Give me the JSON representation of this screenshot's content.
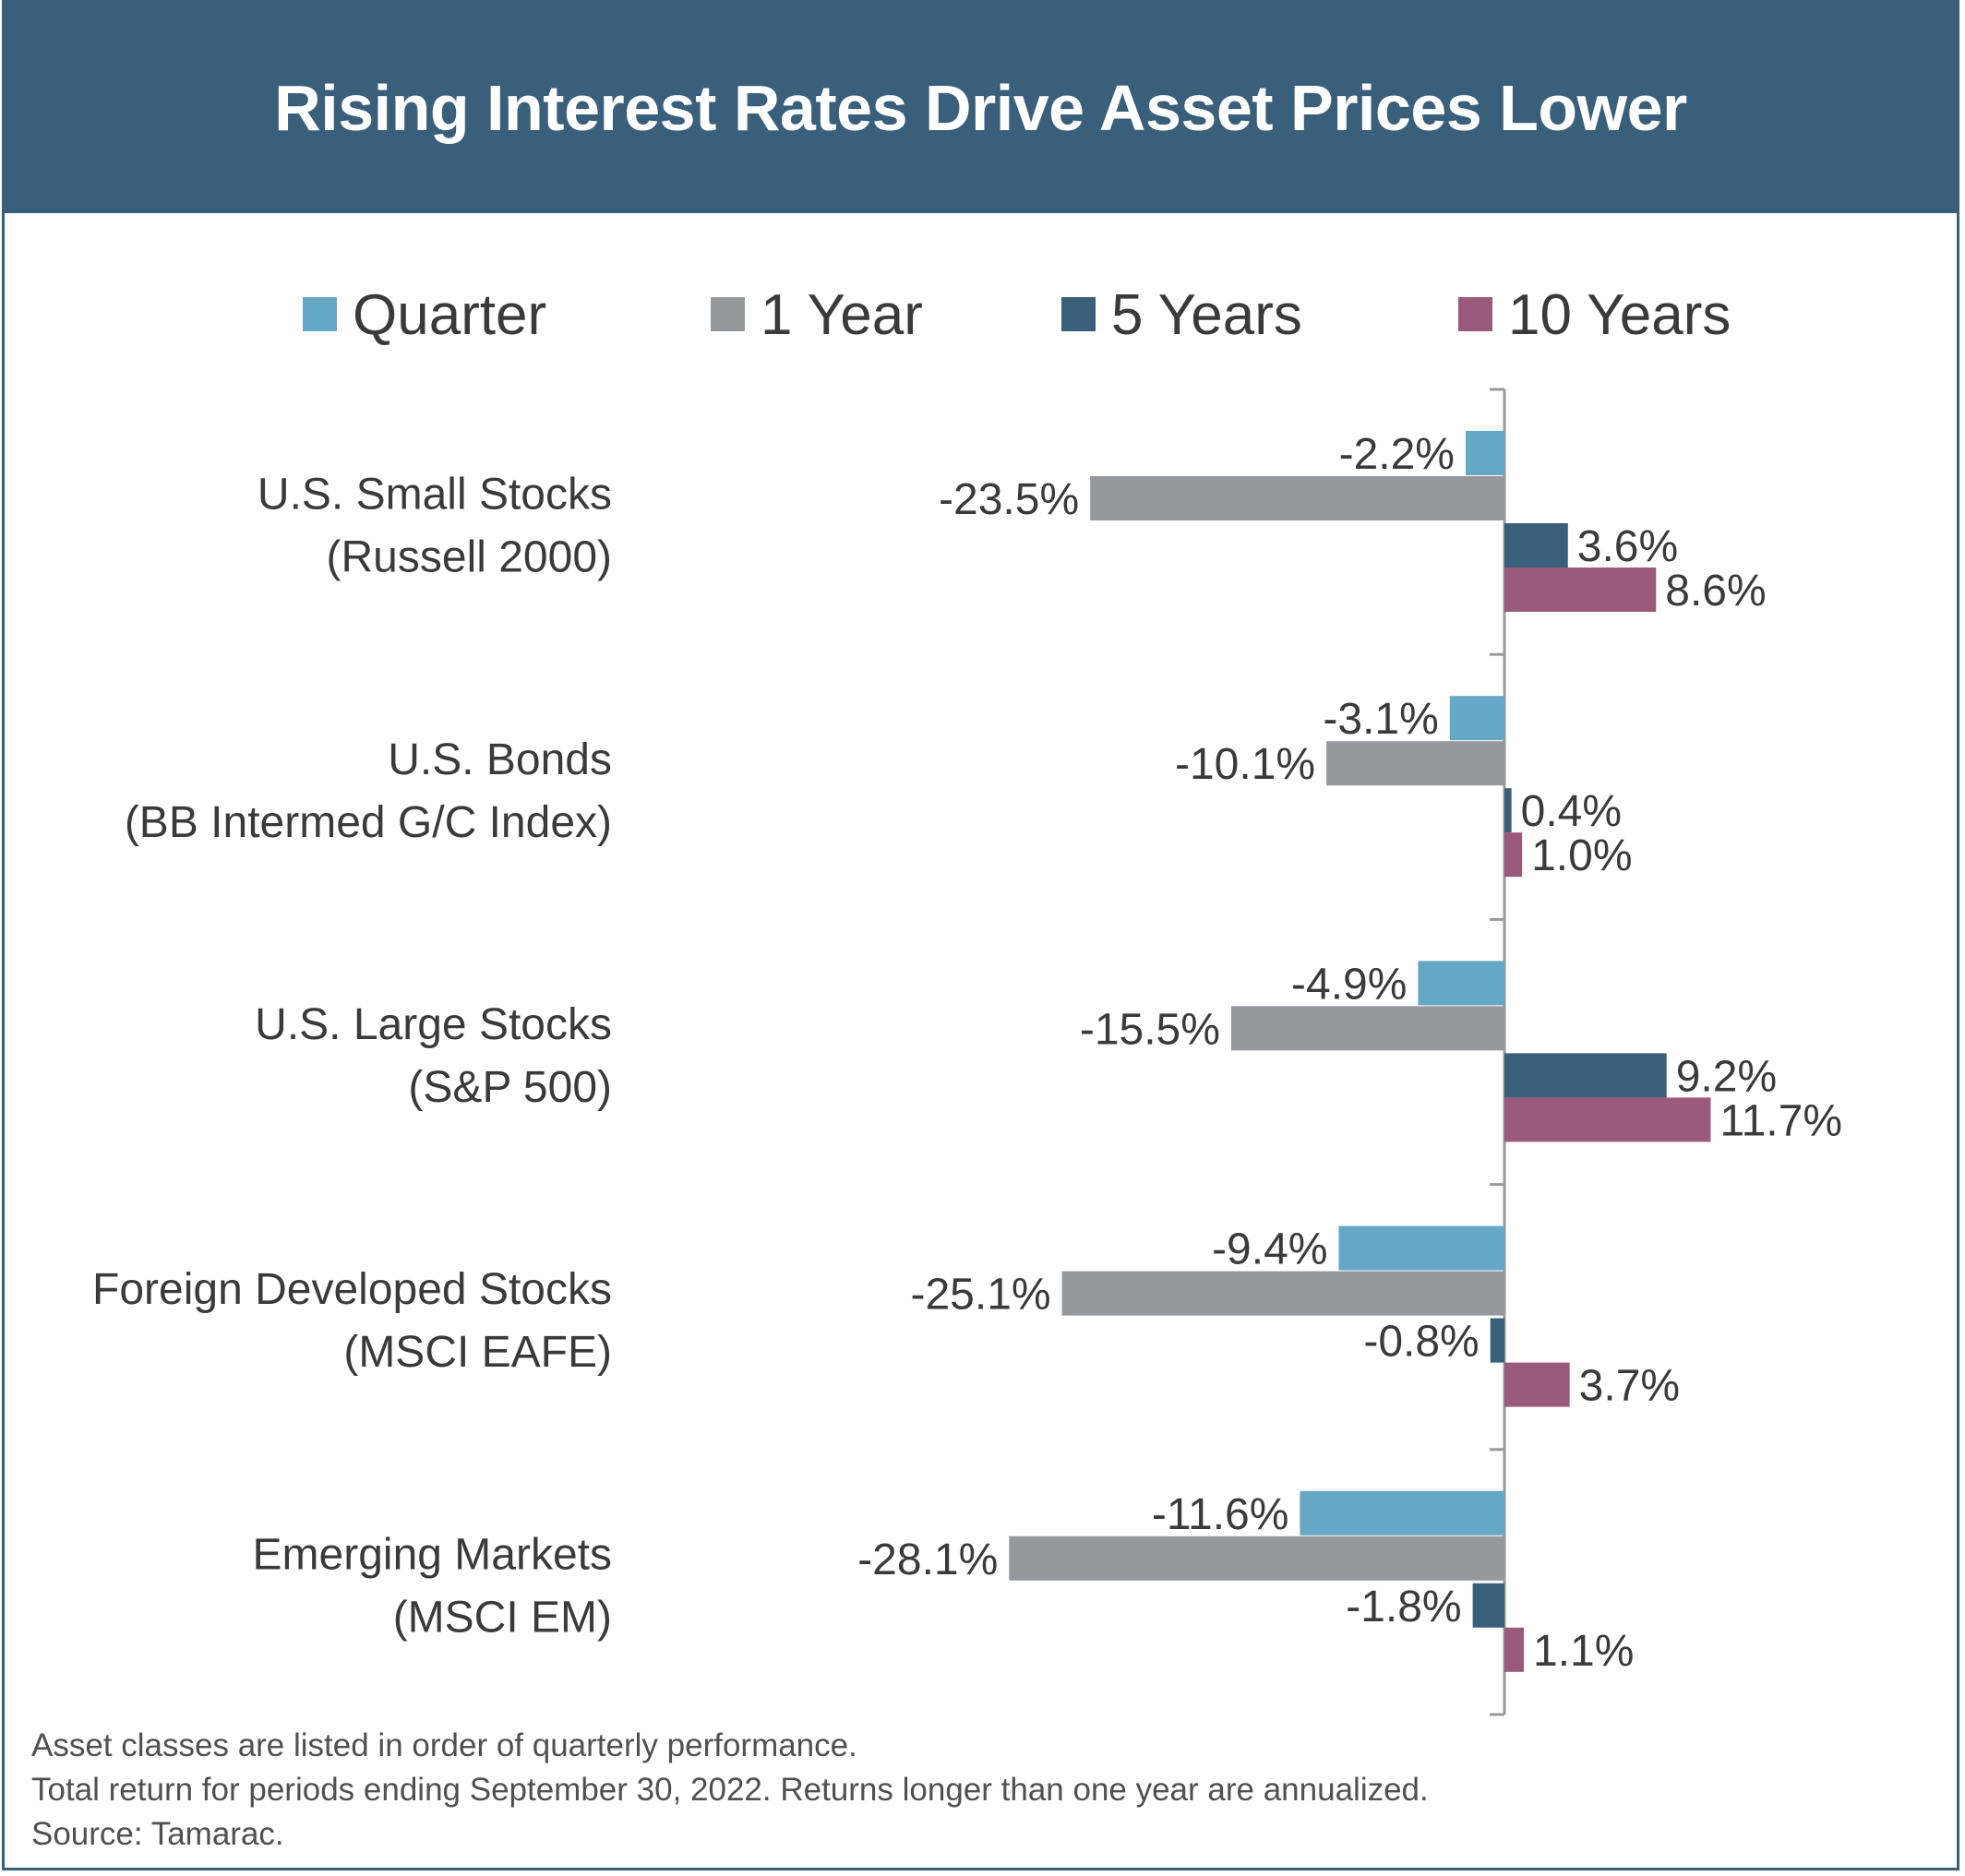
{
  "colors": {
    "header": "#3a5f7a",
    "Quarter": "#65a7c4",
    "1 Year": "#97989b",
    "5 Years": "#3a5f7a",
    "10 Years": "#9a5a7c"
  },
  "chart_data": {
    "type": "bar",
    "orientation": "horizontal",
    "title": "Rising Interest Rates Drive Asset Prices Lower",
    "legend_position": "top",
    "categories": [
      [
        "U.S. Small Stocks",
        "(Russell 2000)"
      ],
      [
        "U.S. Bonds",
        "(BB Intermed G/C Index)"
      ],
      [
        "U.S. Large Stocks",
        "(S&P 500)"
      ],
      [
        "Foreign Developed Stocks",
        "(MSCI EAFE)"
      ],
      [
        "Emerging Markets",
        "(MSCI EM)"
      ]
    ],
    "series": [
      {
        "name": "Quarter",
        "values": [
          -2.2,
          -3.1,
          -4.9,
          -9.4,
          -11.6
        ],
        "labels": [
          "-2.2%",
          "-3.1%",
          "-4.9%",
          "-9.4%",
          "-11.6%"
        ]
      },
      {
        "name": "1 Year",
        "values": [
          -23.5,
          -10.1,
          -15.5,
          -25.1,
          -28.1
        ],
        "labels": [
          "-23.5%",
          "-10.1%",
          "-15.5%",
          "-25.1%",
          "-28.1%"
        ]
      },
      {
        "name": "5 Years",
        "values": [
          3.6,
          0.4,
          9.2,
          -0.8,
          -1.8
        ],
        "labels": [
          "3.6%",
          "0.4%",
          "9.2%",
          "-0.8%",
          "-1.8%"
        ]
      },
      {
        "name": "10 Years",
        "values": [
          8.6,
          1.0,
          11.7,
          3.7,
          1.1
        ],
        "labels": [
          "8.6%",
          "1.0%",
          "11.7%",
          "3.7%",
          "1.1%"
        ]
      }
    ],
    "xlim": [
      -30,
      12
    ],
    "grid": false
  },
  "footnotes": [
    "Asset classes are listed in order of quarterly performance.",
    "Total return for periods ending September 30, 2022. Returns longer than one year are annualized.",
    "Source: Tamarac."
  ]
}
